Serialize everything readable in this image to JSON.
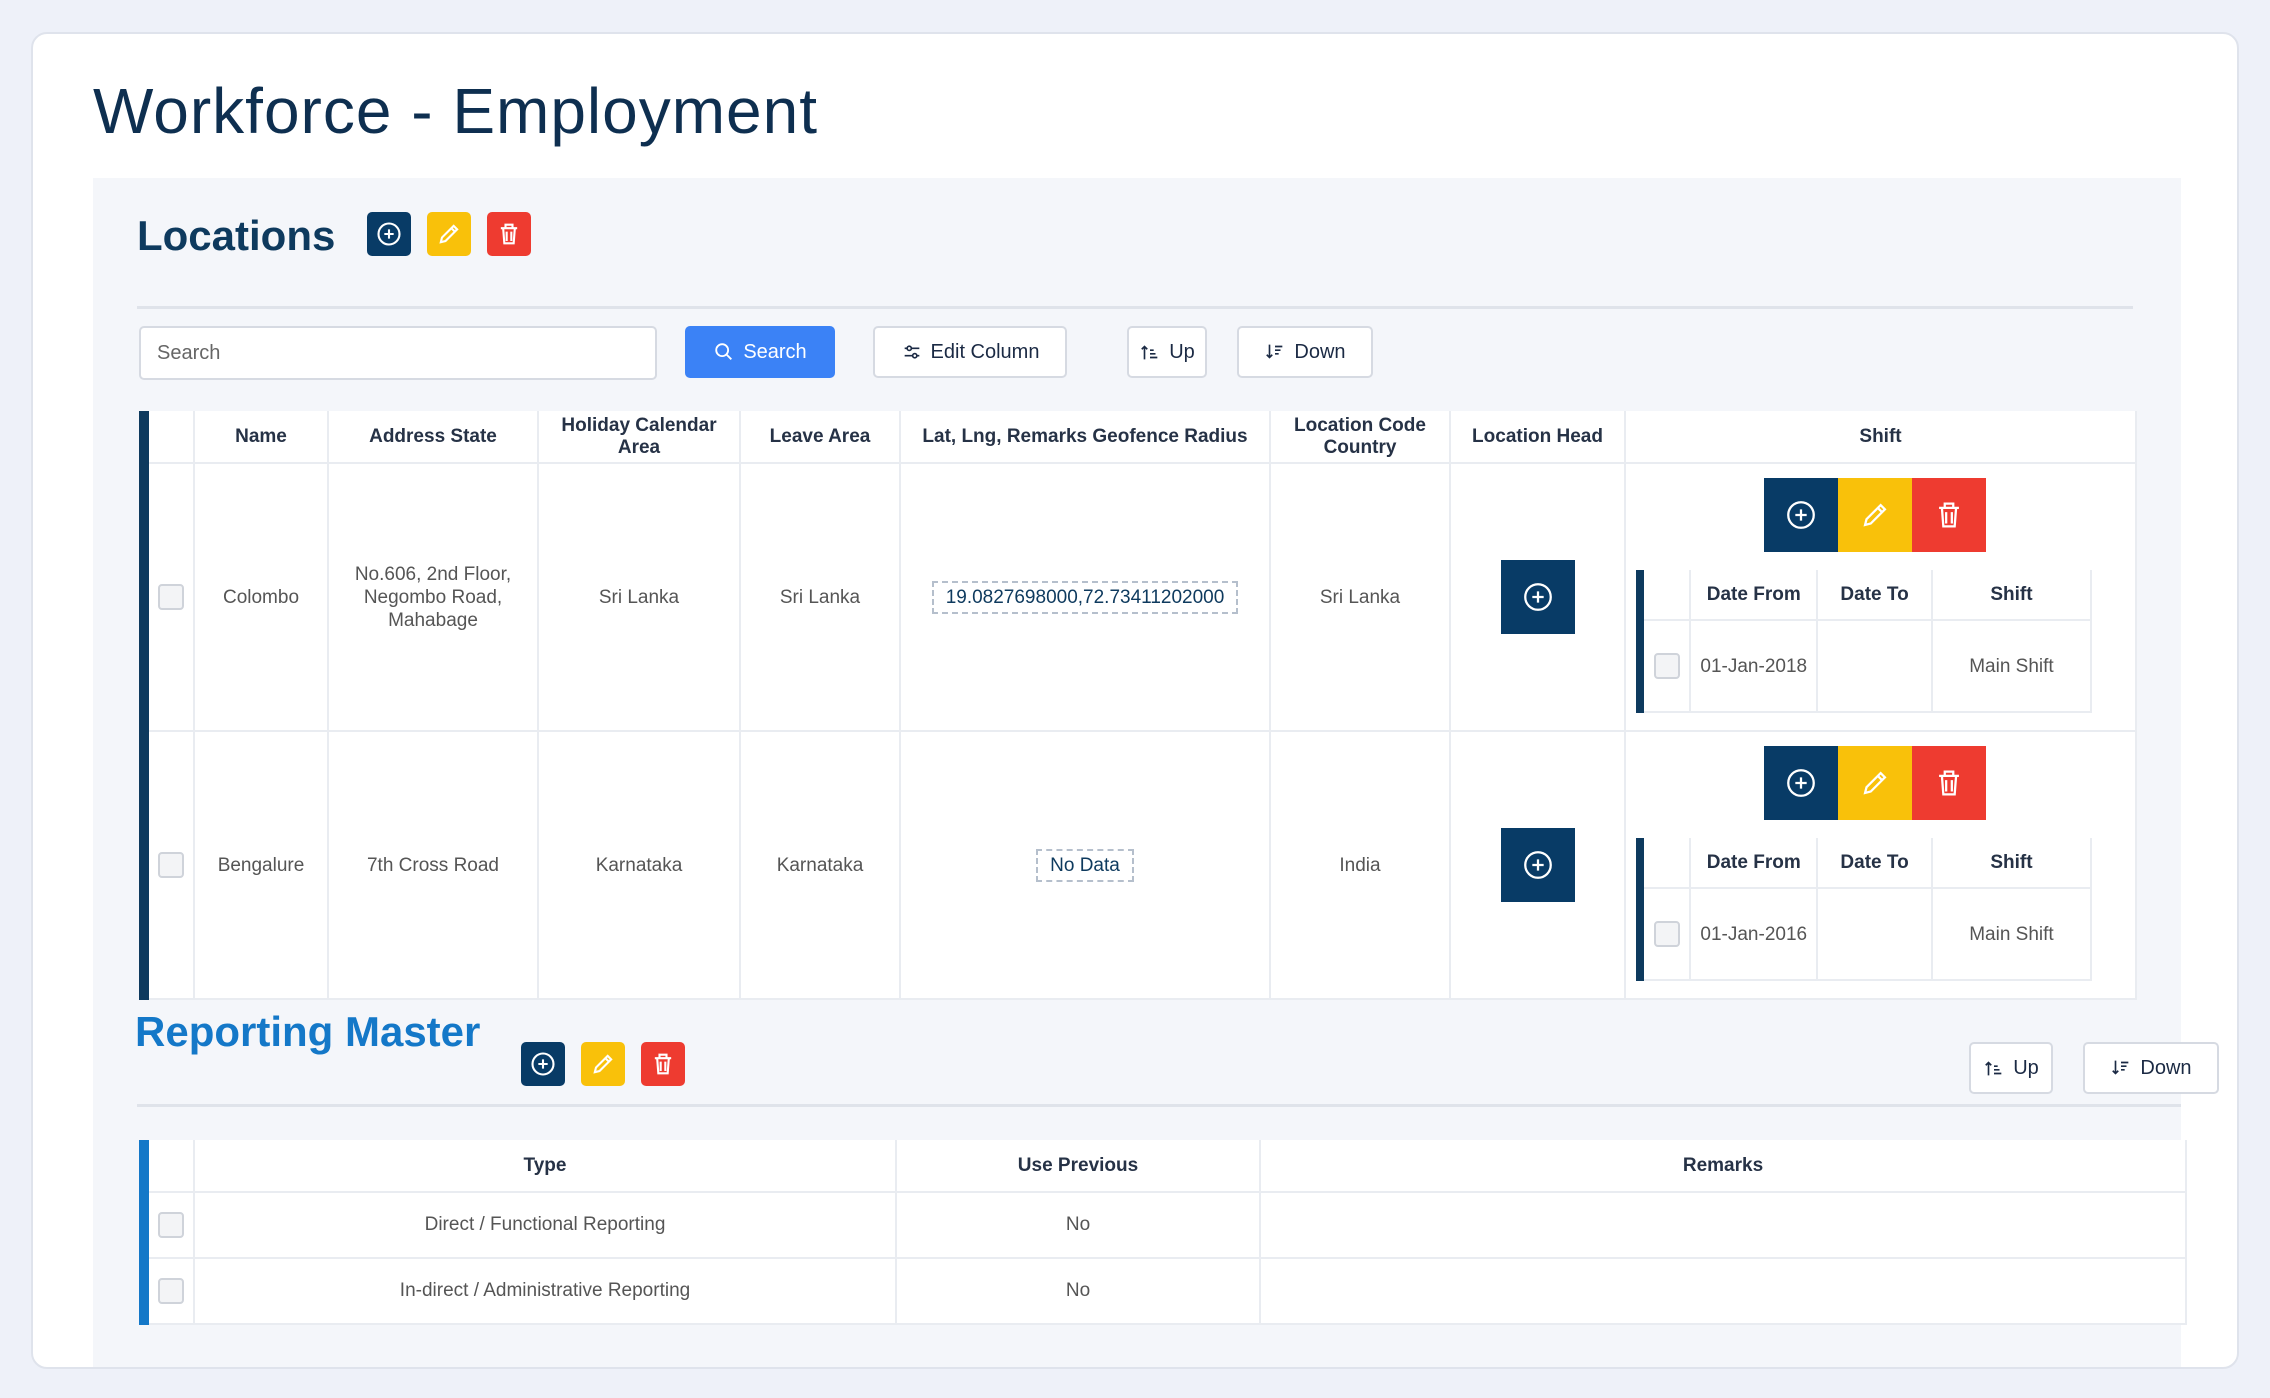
{
  "page": {
    "title": "Workforce - Employment"
  },
  "colors": {
    "navy": "#083b66",
    "yellow": "#f9c10a",
    "red": "#ee3b30",
    "primary": "#3b82f6",
    "accent_blue": "#1478c8"
  },
  "locations": {
    "title": "Locations",
    "search_placeholder": "Search",
    "search_button": "Search",
    "edit_column_button": "Edit Column",
    "up_button": "Up",
    "down_button": "Down",
    "columns": [
      "Name",
      "Address State",
      "Holiday Calendar Area",
      "Leave Area",
      "Lat, Lng, Remarks Geofence Radius",
      "Location Code Country",
      "Location Head",
      "Shift"
    ],
    "rows": [
      {
        "name": "Colombo",
        "address": "No.606, 2nd Floor, Negombo Road, Mahabage",
        "holiday_area": "Sri Lanka",
        "leave_area": "Sri Lanka",
        "geo": "19.0827698000,72.73411202000",
        "country": "Sri Lanka",
        "shift": {
          "columns": [
            "Date From",
            "Date To",
            "Shift"
          ],
          "date_from": "01-Jan-2018",
          "date_to": "",
          "shift": "Main Shift"
        }
      },
      {
        "name": "Bengalure",
        "address": "7th Cross Road",
        "holiday_area": "Karnataka",
        "leave_area": "Karnataka",
        "geo": "No Data",
        "country": "India",
        "shift": {
          "columns": [
            "Date From",
            "Date To",
            "Shift"
          ],
          "date_from": "01-Jan-2016",
          "date_to": "",
          "shift": "Main Shift"
        }
      }
    ]
  },
  "reporting": {
    "title": "Reporting Master",
    "up_button": "Up",
    "down_button": "Down",
    "columns": [
      "Type",
      "Use Previous",
      "Remarks"
    ],
    "rows": [
      {
        "type": "Direct / Functional Reporting",
        "use_previous": "No",
        "remarks": ""
      },
      {
        "type": "In-direct / Administrative Reporting",
        "use_previous": "No",
        "remarks": ""
      }
    ]
  }
}
